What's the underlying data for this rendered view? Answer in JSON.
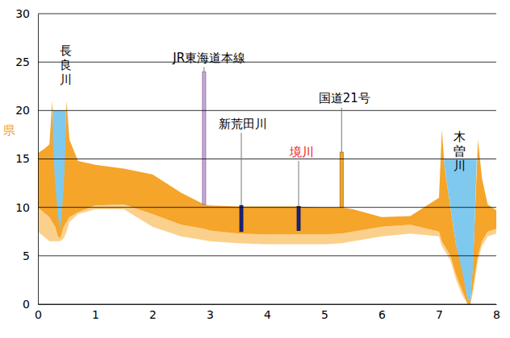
{
  "chart_data": {
    "type": "area",
    "xlim": [
      0,
      8
    ],
    "ylim": [
      0,
      30
    ],
    "xticks": [
      0,
      1,
      2,
      3,
      4,
      5,
      6,
      7,
      8
    ],
    "yticks": [
      0,
      5,
      10,
      15,
      20,
      25,
      30
    ],
    "grid": true,
    "series": [
      {
        "type": "area",
        "color": "#fbd08c",
        "x": [
          0,
          0.1,
          0.2,
          0.25,
          0.3,
          0.35,
          0.39,
          0.45,
          0.5,
          0.55,
          0.7,
          1,
          1.5,
          2,
          2.5,
          2.9,
          3,
          3.5,
          4,
          4.5,
          5,
          5.3,
          5.5,
          6,
          6.5,
          7,
          7.05,
          7.1,
          7.2,
          7.3,
          7.4,
          7.5,
          7.55,
          7.6,
          7.68,
          7.75,
          7.85,
          8
        ],
        "values": [
          10,
          9.5,
          9,
          8.5,
          8,
          7,
          6.8,
          8,
          8.5,
          9,
          9.5,
          10.2,
          10.3,
          9.3,
          8.2,
          7.8,
          7.6,
          7.3,
          7.2,
          7.2,
          7.2,
          7.3,
          7.5,
          8,
          8.2,
          7.5,
          6.5,
          6,
          5,
          3,
          1.5,
          0,
          0,
          2,
          5,
          6.5,
          7.5,
          7.8
        ],
        "base": [
          7.5,
          7,
          6.5,
          6.5,
          6.5,
          6.5,
          6.5,
          6.8,
          7.5,
          8.5,
          9.3,
          9.8,
          9.8,
          8,
          7,
          6.6,
          6.5,
          6.3,
          6.2,
          6.2,
          6.2,
          6.3,
          6.5,
          7,
          7.3,
          7,
          6,
          5.5,
          4.5,
          2.5,
          1,
          0,
          0,
          1.5,
          4.5,
          6,
          7,
          7.3
        ]
      },
      {
        "type": "area",
        "color": "#f5a52a",
        "x": [
          0,
          0.1,
          0.2,
          0.25,
          0.3,
          0.35,
          0.39,
          0.45,
          0.5,
          0.55,
          0.7,
          1,
          1.5,
          2,
          2.5,
          2.9,
          3,
          3.5,
          4,
          4.5,
          5,
          5.3,
          5.5,
          6,
          6.5,
          7,
          7.05,
          7.1,
          7.2,
          7.3,
          7.4,
          7.5,
          7.55,
          7.6,
          7.68,
          7.75,
          7.85,
          8
        ],
        "values": [
          15.6,
          16,
          16.5,
          21,
          13,
          10,
          8,
          13,
          21,
          17,
          14.8,
          14.4,
          14,
          13.4,
          11.5,
          10.3,
          10.2,
          10.1,
          10.1,
          10.1,
          10,
          10,
          9.8,
          9,
          9.1,
          11,
          18,
          14,
          10,
          6,
          4,
          0.5,
          0.3,
          5,
          17,
          13,
          10.3,
          9.7
        ],
        "base": [
          10,
          9.5,
          9,
          8.5,
          8,
          7,
          6.8,
          8,
          8.5,
          9,
          9.5,
          10.2,
          10.3,
          9.3,
          8.2,
          7.8,
          7.6,
          7.3,
          7.2,
          7.2,
          7.2,
          7.3,
          7.5,
          8,
          8.2,
          7.5,
          6.5,
          6,
          5,
          3,
          1.5,
          0,
          0,
          2,
          5,
          6.5,
          7.5,
          7.8
        ]
      },
      {
        "type": "area",
        "color": "#7fc9ef",
        "x": [
          0.26,
          0.3,
          0.35,
          0.39,
          0.45,
          0.49
        ],
        "values": [
          20,
          20,
          20,
          20,
          20,
          20
        ],
        "base": [
          17,
          12.5,
          9,
          7.8,
          12,
          18
        ]
      },
      {
        "type": "area",
        "color": "#7fc9ef",
        "x": [
          7.09,
          7.2,
          7.3,
          7.4,
          7.5,
          7.55,
          7.6,
          7.66
        ],
        "values": [
          15,
          15,
          15,
          15,
          15,
          15,
          15,
          15
        ],
        "base": [
          14.5,
          10,
          6,
          3.5,
          0.5,
          0.3,
          4.5,
          15
        ]
      }
    ],
    "structures": [
      {
        "x": 2.9,
        "top": 24,
        "bottom": 10.3,
        "color": "#c9a6dc",
        "label": {
          "text": "JR東海道本線",
          "x": 2.99,
          "y": 25.4,
          "color": "#000000"
        }
      },
      {
        "x": 3.55,
        "top": 10.2,
        "bottom": 7.5,
        "color": "#1a237e",
        "label": {
          "text": "新荒田川",
          "x": 3.58,
          "y": 18.6,
          "color": "#000000"
        }
      },
      {
        "x": 4.55,
        "top": 10.1,
        "bottom": 7.6,
        "color": "#1a237e",
        "label": {
          "text": "境川",
          "x": 4.6,
          "y": 15.7,
          "color": "#e8141c"
        }
      },
      {
        "x": 5.3,
        "top": 15.7,
        "bottom": 10,
        "color": "#f5a52a",
        "label": {
          "text": "国道21号",
          "x": 5.35,
          "y": 21.2,
          "color": "#000000"
        }
      }
    ],
    "annotations": [
      {
        "text": "長良川",
        "x": 0.48,
        "y": 26.2,
        "color": "#000000",
        "orientation": "vertical"
      },
      {
        "text": "木曽川",
        "x": 7.36,
        "y": 17.3,
        "color": "#000000",
        "orientation": "vertical"
      },
      {
        "text": "県",
        "x": -0.6,
        "y": 17.9,
        "color": "#f0a030"
      }
    ]
  }
}
